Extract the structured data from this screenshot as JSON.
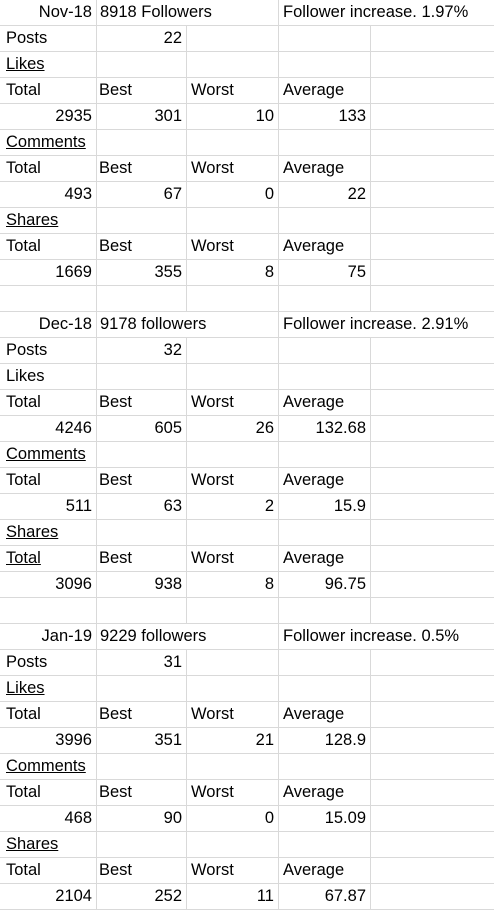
{
  "sections": [
    {
      "month": "Nov-18",
      "followers": "8918 Followers",
      "increase": "Follower increase. 1.97%",
      "posts_label": "Posts",
      "posts": "22",
      "likes_label": "Likes",
      "likes": {
        "total": "2935",
        "best": "301",
        "worst": "10",
        "average": "133"
      },
      "comments_label": "Comments",
      "comments": {
        "total": "493",
        "best": "67",
        "worst": "0",
        "average": "22"
      },
      "shares_label": "Shares",
      "shares": {
        "total": "1669",
        "best": "355",
        "worst": "8",
        "average": "75"
      }
    },
    {
      "month": "Dec-18",
      "followers": "9178 followers",
      "increase": "Follower increase. 2.91%",
      "posts_label": "Posts",
      "posts": "32",
      "likes_label": "Likes",
      "likes": {
        "total": "4246",
        "best": "605",
        "worst": "26",
        "average": "132.68"
      },
      "comments_label": "Comments",
      "comments": {
        "total": "511",
        "best": "63",
        "worst": "2",
        "average": "15.9"
      },
      "shares_label": "Shares",
      "shares": {
        "total": "3096",
        "best": "938",
        "worst": "8",
        "average": "96.75"
      }
    },
    {
      "month": "Jan-19",
      "followers": "9229 followers",
      "increase": "Follower increase. 0.5%",
      "posts_label": "Posts",
      "posts": "31",
      "likes_label": "Likes",
      "likes": {
        "total": "3996",
        "best": "351",
        "worst": "21",
        "average": "128.9"
      },
      "comments_label": "Comments",
      "comments": {
        "total": "468",
        "best": "90",
        "worst": "0",
        "average": "15.09"
      },
      "shares_label": "Shares",
      "shares": {
        "total": "2104",
        "best": "252",
        "worst": "11",
        "average": "67.87"
      }
    }
  ],
  "headers": {
    "total": "Total",
    "best": "Best",
    "worst": "Worst",
    "average": "Average"
  }
}
